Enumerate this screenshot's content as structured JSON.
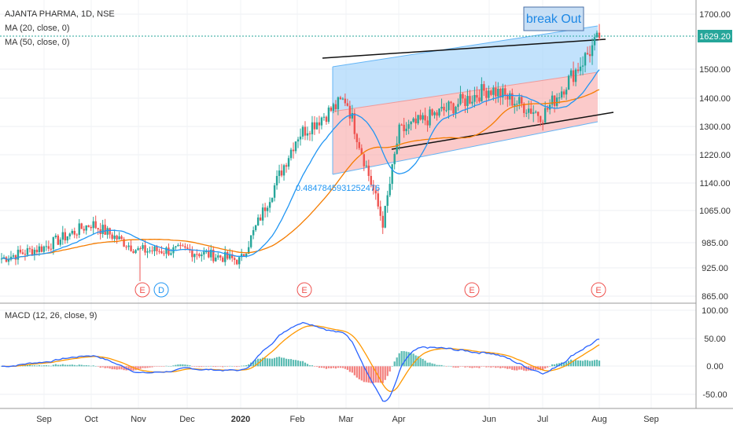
{
  "chart_data": [
    {
      "type": "candlestick",
      "title": "AJANTA PHARMA, 1D, NSE",
      "indicators": [
        "MA (20, close, 0)",
        "MA (50, close, 0)"
      ],
      "ylim": [
        865,
        1740
      ],
      "y_ticks": [
        "1700.00",
        "1629.20",
        "1500.00",
        "1400.00",
        "1300.00",
        "1220.00",
        "1140.00",
        "1065.00",
        "985.00",
        "925.00",
        "865.00"
      ],
      "last_price": "1629.20",
      "annotation": "break Out",
      "regression_label": "0.4847845931252476",
      "event_markers": [
        "E",
        "D",
        "E",
        "E",
        "E"
      ],
      "colors": {
        "up": "#26a69a",
        "down": "#ef5350",
        "ma20": "#2196f3",
        "ma50": "#f57c00",
        "upper_channel": "#90caf9",
        "lower_channel": "#f8a7a7"
      },
      "close_approx": [
        {
          "date": "Aug",
          "close": 975
        },
        {
          "date": "Sep",
          "close": 1010
        },
        {
          "date": "Oct",
          "close": 1080
        },
        {
          "date": "Nov",
          "close": 1000
        },
        {
          "date": "Dec",
          "close": 1000
        },
        {
          "date": "2020",
          "close": 970
        },
        {
          "date": "Feb",
          "close": 1340
        },
        {
          "date": "Mar",
          "close": 1450
        },
        {
          "date": "Mar-end",
          "close": 1080
        },
        {
          "date": "Apr",
          "close": 1350
        },
        {
          "date": "Jun",
          "close": 1480
        },
        {
          "date": "Jul",
          "close": 1400
        },
        {
          "date": "Aug",
          "close": 1629.2
        }
      ]
    },
    {
      "type": "macd",
      "title": "MACD (12, 26, close, 9)",
      "ylim": [
        -70,
        110
      ],
      "y_ticks": [
        "100.00",
        "50.00",
        "0.00",
        "-50.00"
      ],
      "colors": {
        "macd": "#2962ff",
        "signal": "#ff9800"
      }
    }
  ],
  "x_axis": {
    "labels": [
      "Sep",
      "Oct",
      "Nov",
      "Dec",
      "2020",
      "Feb",
      "Mar",
      "Apr",
      "Jun",
      "Jul",
      "Aug",
      "Sep"
    ]
  }
}
